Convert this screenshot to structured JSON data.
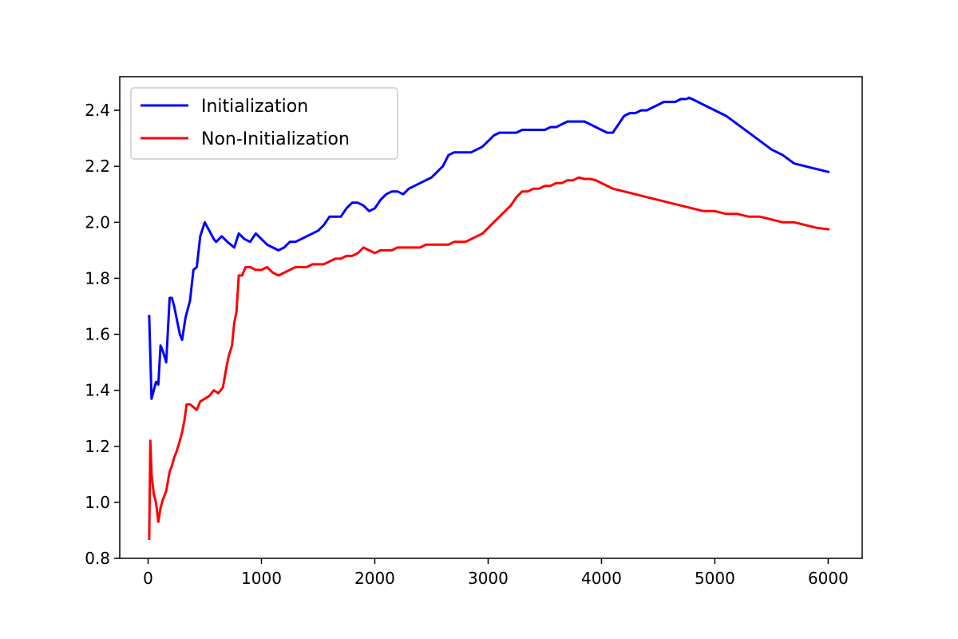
{
  "chart_data": {
    "type": "line",
    "title": "",
    "xlabel": "",
    "ylabel": "",
    "xlim": [
      -250,
      6300
    ],
    "ylim": [
      0.8,
      2.52
    ],
    "xticks": [
      0,
      1000,
      2000,
      3000,
      4000,
      5000,
      6000
    ],
    "yticks": [
      0.8,
      1.0,
      1.2,
      1.4,
      1.6,
      1.8,
      2.0,
      2.2,
      2.4
    ],
    "grid": false,
    "legend_position": "upper-left",
    "series": [
      {
        "name": "Initialization",
        "color": "#0000ff",
        "x": [
          10,
          30,
          50,
          70,
          90,
          110,
          130,
          160,
          190,
          210,
          230,
          260,
          280,
          300,
          330,
          370,
          400,
          430,
          460,
          500,
          540,
          580,
          600,
          650,
          700,
          760,
          800,
          850,
          900,
          950,
          1000,
          1050,
          1100,
          1150,
          1200,
          1250,
          1300,
          1350,
          1400,
          1450,
          1500,
          1550,
          1600,
          1650,
          1700,
          1750,
          1800,
          1850,
          1900,
          1950,
          2000,
          2050,
          2100,
          2150,
          2200,
          2250,
          2300,
          2350,
          2400,
          2450,
          2500,
          2550,
          2600,
          2650,
          2700,
          2750,
          2800,
          2850,
          2900,
          2950,
          3000,
          3050,
          3100,
          3150,
          3200,
          3250,
          3300,
          3350,
          3400,
          3450,
          3500,
          3550,
          3600,
          3650,
          3700,
          3750,
          3800,
          3850,
          3900,
          3950,
          4000,
          4050,
          4100,
          4150,
          4200,
          4250,
          4300,
          4350,
          4400,
          4450,
          4500,
          4550,
          4600,
          4650,
          4700,
          4750,
          4770,
          4800,
          4900,
          5000,
          5100,
          5200,
          5300,
          5400,
          5500,
          5600,
          5700,
          5800,
          5900,
          6000
        ],
        "values": [
          1.665,
          1.37,
          1.4,
          1.43,
          1.42,
          1.56,
          1.54,
          1.5,
          1.73,
          1.73,
          1.7,
          1.64,
          1.6,
          1.58,
          1.66,
          1.72,
          1.83,
          1.84,
          1.95,
          2.0,
          1.97,
          1.94,
          1.93,
          1.95,
          1.93,
          1.91,
          1.96,
          1.94,
          1.93,
          1.96,
          1.94,
          1.92,
          1.91,
          1.9,
          1.91,
          1.93,
          1.93,
          1.94,
          1.95,
          1.96,
          1.97,
          1.99,
          2.02,
          2.02,
          2.02,
          2.05,
          2.07,
          2.07,
          2.06,
          2.04,
          2.05,
          2.08,
          2.1,
          2.11,
          2.11,
          2.1,
          2.12,
          2.13,
          2.14,
          2.15,
          2.16,
          2.18,
          2.2,
          2.24,
          2.25,
          2.25,
          2.25,
          2.25,
          2.26,
          2.27,
          2.29,
          2.31,
          2.32,
          2.32,
          2.32,
          2.32,
          2.33,
          2.33,
          2.33,
          2.33,
          2.33,
          2.34,
          2.34,
          2.35,
          2.36,
          2.36,
          2.36,
          2.36,
          2.35,
          2.34,
          2.33,
          2.32,
          2.32,
          2.35,
          2.38,
          2.39,
          2.39,
          2.4,
          2.4,
          2.41,
          2.42,
          2.43,
          2.43,
          2.43,
          2.44,
          2.44,
          2.445,
          2.44,
          2.42,
          2.4,
          2.38,
          2.35,
          2.32,
          2.29,
          2.26,
          2.24,
          2.21,
          2.2,
          2.19,
          2.18
        ]
      },
      {
        "name": "Non-Initialization",
        "color": "#ff0000",
        "x": [
          10,
          20,
          30,
          50,
          70,
          90,
          110,
          130,
          160,
          190,
          210,
          230,
          250,
          280,
          300,
          320,
          340,
          370,
          400,
          430,
          460,
          500,
          540,
          580,
          620,
          660,
          690,
          710,
          740,
          760,
          780,
          800,
          830,
          860,
          900,
          950,
          1000,
          1050,
          1100,
          1150,
          1200,
          1250,
          1300,
          1350,
          1400,
          1450,
          1500,
          1550,
          1600,
          1650,
          1700,
          1750,
          1800,
          1850,
          1900,
          1950,
          2000,
          2050,
          2100,
          2150,
          2200,
          2250,
          2300,
          2350,
          2400,
          2450,
          2500,
          2550,
          2600,
          2650,
          2700,
          2750,
          2800,
          2850,
          2900,
          2950,
          3000,
          3050,
          3100,
          3150,
          3200,
          3250,
          3300,
          3350,
          3400,
          3450,
          3500,
          3550,
          3600,
          3650,
          3700,
          3750,
          3800,
          3850,
          3900,
          3950,
          4000,
          4100,
          4200,
          4300,
          4400,
          4500,
          4600,
          4700,
          4800,
          4900,
          5000,
          5100,
          5200,
          5300,
          5400,
          5500,
          5600,
          5700,
          5800,
          5900,
          6000
        ],
        "values": [
          0.87,
          1.22,
          1.1,
          1.03,
          1.0,
          0.93,
          0.98,
          1.01,
          1.04,
          1.11,
          1.13,
          1.16,
          1.18,
          1.22,
          1.25,
          1.29,
          1.35,
          1.35,
          1.34,
          1.33,
          1.36,
          1.37,
          1.38,
          1.4,
          1.39,
          1.41,
          1.48,
          1.52,
          1.56,
          1.64,
          1.68,
          1.81,
          1.81,
          1.84,
          1.84,
          1.83,
          1.83,
          1.84,
          1.82,
          1.81,
          1.82,
          1.83,
          1.84,
          1.84,
          1.84,
          1.85,
          1.85,
          1.85,
          1.86,
          1.87,
          1.87,
          1.88,
          1.88,
          1.89,
          1.91,
          1.9,
          1.89,
          1.9,
          1.9,
          1.9,
          1.91,
          1.91,
          1.91,
          1.91,
          1.91,
          1.92,
          1.92,
          1.92,
          1.92,
          1.92,
          1.93,
          1.93,
          1.93,
          1.94,
          1.95,
          1.96,
          1.98,
          2.0,
          2.02,
          2.04,
          2.06,
          2.09,
          2.11,
          2.11,
          2.12,
          2.12,
          2.13,
          2.13,
          2.14,
          2.14,
          2.15,
          2.15,
          2.16,
          2.155,
          2.155,
          2.15,
          2.14,
          2.12,
          2.11,
          2.1,
          2.09,
          2.08,
          2.07,
          2.06,
          2.05,
          2.04,
          2.04,
          2.03,
          2.03,
          2.02,
          2.02,
          2.01,
          2.0,
          2.0,
          1.99,
          1.98,
          1.975
        ]
      }
    ]
  }
}
